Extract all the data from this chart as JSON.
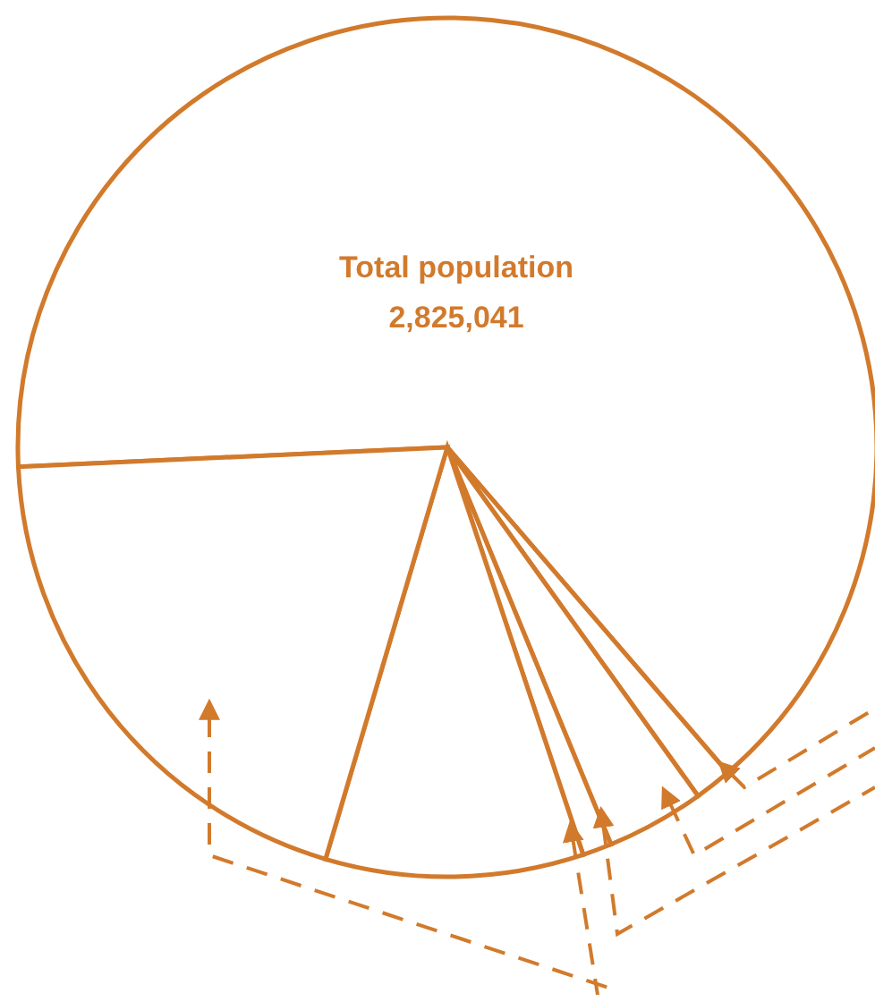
{
  "chart_data": {
    "type": "pie",
    "title": "Total population",
    "subtitle": "2,825,041",
    "categories": [
      null,
      null,
      null,
      null,
      null,
      null
    ],
    "values": [
      64.4,
      1.4,
      3.7,
      1.1,
      9.7,
      19.7
    ],
    "colors": [
      "#ffffff",
      "#ffffff",
      "#ffffff",
      "#ffffff",
      "#ffffff",
      "#ffffff"
    ]
  }
}
